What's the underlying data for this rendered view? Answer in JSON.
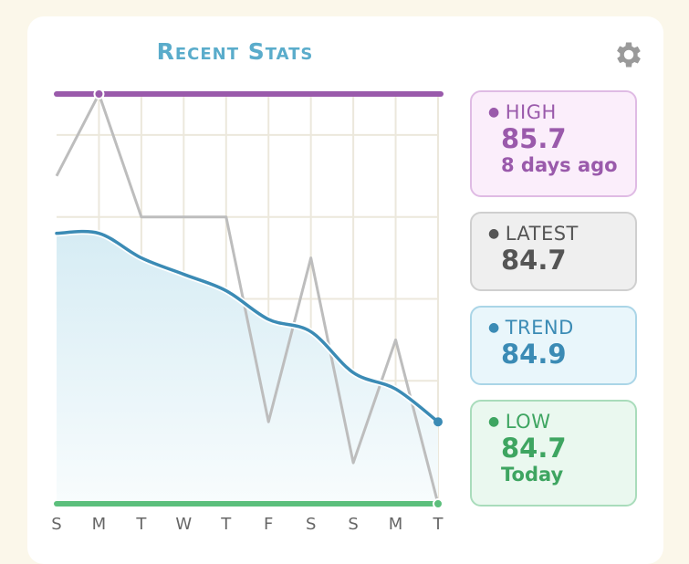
{
  "header": {
    "title": "Recent Stats",
    "settings_icon": "gear-icon"
  },
  "stats": {
    "high": {
      "label": "HIGH",
      "value": "85.7",
      "sub": "8 days ago",
      "color": "#9a5aab"
    },
    "latest": {
      "label": "LATEST",
      "value": "84.7"
    },
    "trend": {
      "label": "TREND",
      "value": "84.9"
    },
    "low": {
      "label": "LOW",
      "value": "84.7",
      "sub": "Today",
      "color": "#3ea561"
    }
  },
  "chart_data": {
    "type": "line",
    "categories": [
      "S",
      "M",
      "T",
      "W",
      "T",
      "F",
      "S",
      "S",
      "M",
      "T"
    ],
    "ylim": [
      84.7,
      85.7
    ],
    "grid": true,
    "series": [
      {
        "values": [
          85.5,
          85.7,
          85.4,
          85.4,
          85.4,
          84.9,
          85.3,
          84.8,
          85.1,
          84.7
        ],
        "color": "#bdbdbd"
      },
      {
        "values": [
          85.36,
          85.36,
          85.3,
          85.26,
          85.22,
          85.15,
          85.12,
          85.02,
          84.98,
          84.9
        ],
        "color": "#3b8bb5"
      }
    ],
    "high_line": {
      "value": 85.7,
      "color": "#9a5aab"
    },
    "low_line": {
      "value": 84.7,
      "color": "#5cbf7c"
    }
  }
}
